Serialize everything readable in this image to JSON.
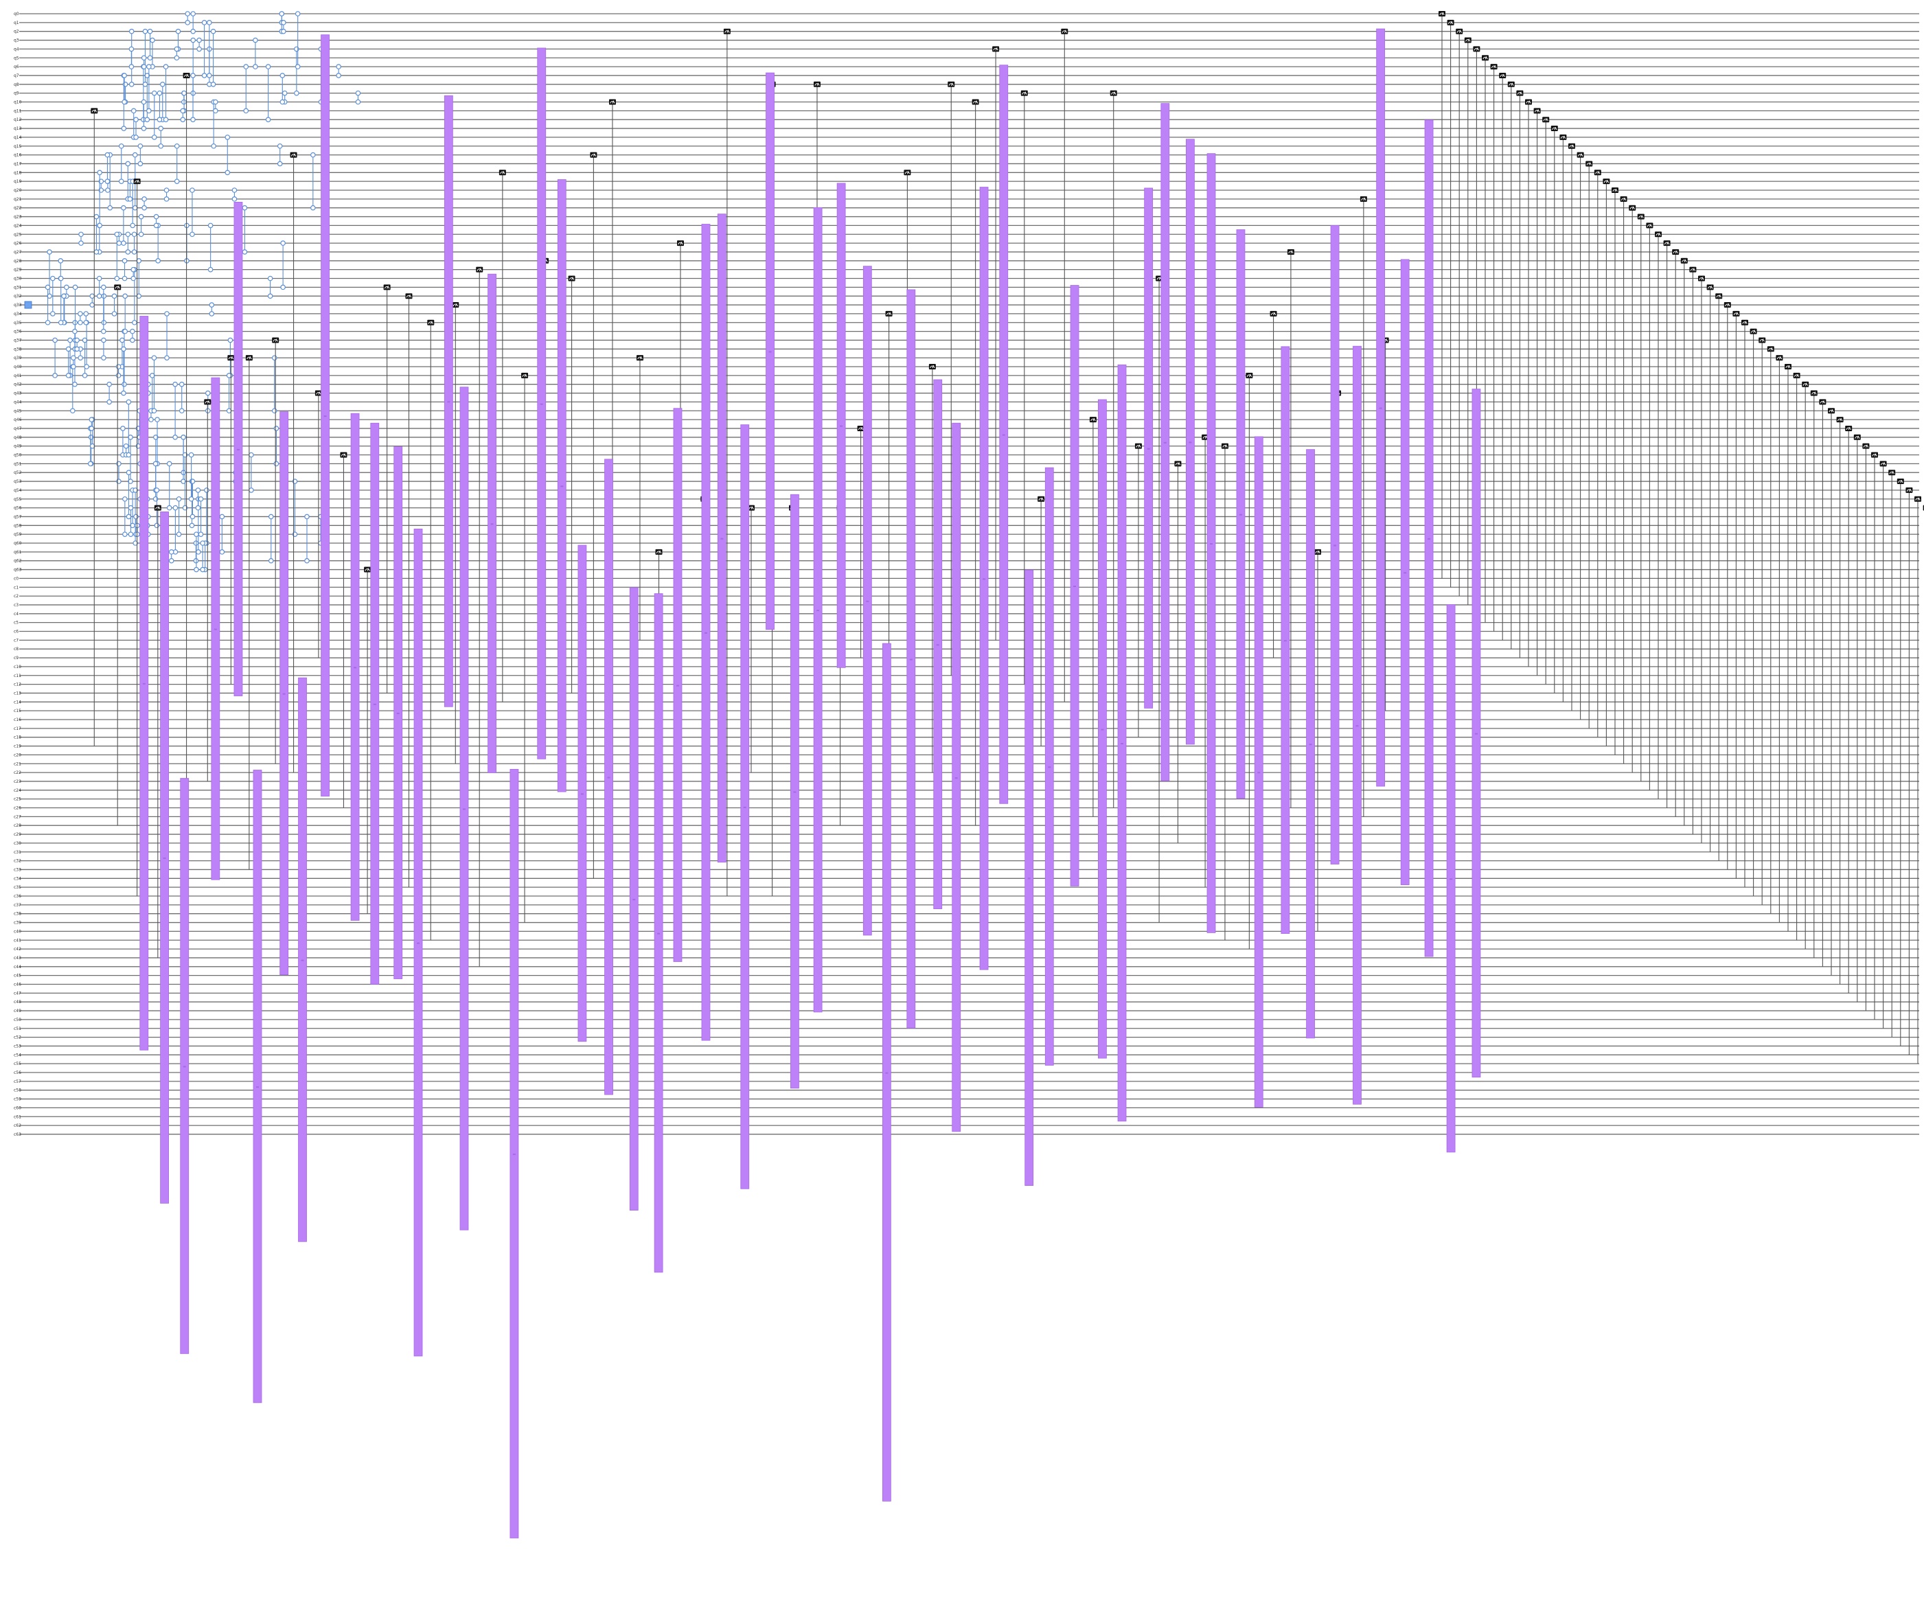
{
  "circuit": {
    "num_qubits": 64,
    "num_clbits": 64,
    "qubit_label_prefix": "q",
    "clbit_label_prefix": "c",
    "colors": {
      "wire": "#6f6f6f",
      "control": "#5b8fd6",
      "measure": "#111111",
      "barrier": "#bd82f7",
      "background": "#ffffff"
    },
    "gates": {
      "hadamard": {
        "name": "h",
        "icon": "h-gate-icon",
        "qubits": [
          33
        ]
      },
      "controlled_phase": {
        "name": "cp",
        "icon": "control-dot-icon"
      },
      "measure": {
        "name": "measure",
        "icon": "meter-icon"
      },
      "barrier": {
        "name": "barrier",
        "icon": "barrier-icon"
      }
    }
  }
}
